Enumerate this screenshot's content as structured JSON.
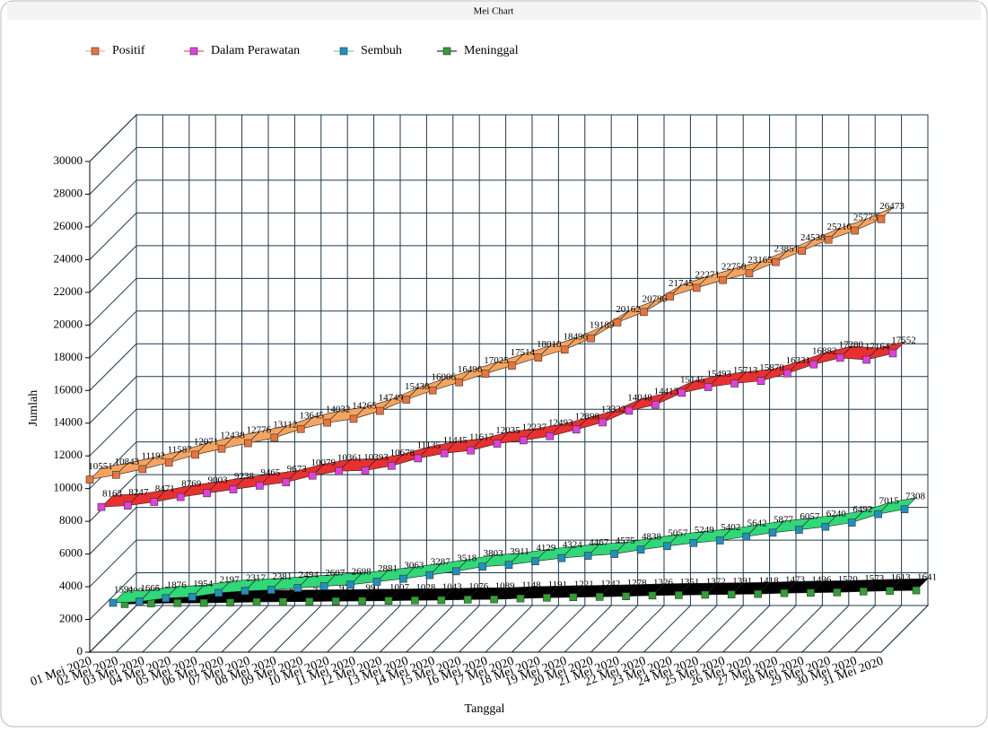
{
  "chart_data": {
    "type": "ribbon3d",
    "title": "Mei Chart",
    "x_label": "Tanggal",
    "y_label": "Jumlah",
    "categories": [
      "01 Mei 2020",
      "02 Mei 2020",
      "03 Mei 2020",
      "04 Mei 2020",
      "05 Mei 2020",
      "06 Mei 2020",
      "07 Mei 2020",
      "08 Mei 2020",
      "09 Mei 2020",
      "10 Mei 2020",
      "11 Mei 2020",
      "12 Mei 2020",
      "13 Mei 2020",
      "14 Mei 2020",
      "15 Mei 2020",
      "16 Mei 2020",
      "17 Mei 2020",
      "18 Mei 2020",
      "19 Mei 2020",
      "20 Mei 2020",
      "21 Mei 2020",
      "22 Mei 2020",
      "23 Mei 2020",
      "24 Mei 2020",
      "25 Mei 2020",
      "26 Mei 2020",
      "27 Mei 2020",
      "28 Mei 2020",
      "29 Mei 2020",
      "30 Mei 2020",
      "31 Mei 2020"
    ],
    "series": [
      {
        "name": "Positif",
        "color": "#e8743b",
        "ribbon_color": "#f4a460",
        "values": [
          10551,
          10843,
          11192,
          11587,
          12071,
          12438,
          12776,
          13112,
          13645,
          14032,
          14265,
          14749,
          15438,
          16006,
          16496,
          17025,
          17514,
          18010,
          18496,
          19189,
          20162,
          20796,
          21745,
          22271,
          22750,
          23165,
          23851,
          24538,
          25216,
          25773,
          26473
        ]
      },
      {
        "name": "Dalam Perawatan",
        "color": "#e040e0",
        "ribbon_color": "#e83030",
        "values": [
          8163,
          8247,
          8471,
          8769,
          9003,
          9238,
          9465,
          9673,
          10079,
          10361,
          10393,
          10678,
          11135,
          11445,
          11617,
          12035,
          12237,
          12493,
          12898,
          13332,
          14048,
          14413,
          15145,
          15493,
          15713,
          15870,
          16331,
          16882,
          17280,
          17164,
          17552
        ]
      },
      {
        "name": "Sembuh",
        "color": "#2090c0",
        "ribbon_color": "#30d878",
        "values": [
          1591,
          1665,
          1876,
          1954,
          2197,
          2317,
          2381,
          2494,
          2607,
          2698,
          2881,
          3063,
          3287,
          3518,
          3803,
          3911,
          4129,
          4324,
          4467,
          4575,
          4838,
          5057,
          5249,
          5402,
          5642,
          5877,
          6057,
          6240,
          6492,
          7015,
          7308
        ]
      },
      {
        "name": "Meninggal",
        "color": "#30a030",
        "ribbon_color": "#000000",
        "values": [
          800,
          845,
          864,
          872,
          895,
          930,
          943,
          959,
          973,
          991,
          1007,
          1028,
          1043,
          1076,
          1089,
          1148,
          1191,
          1221,
          1242,
          1278,
          1326,
          1351,
          1372,
          1391,
          1418,
          1473,
          1496,
          1520,
          1573,
          1613,
          1641
        ]
      }
    ],
    "ylim": [
      0,
      30000
    ],
    "yticks": [
      0,
      2000,
      4000,
      6000,
      8000,
      10000,
      12000,
      14000,
      16000,
      18000,
      20000,
      22000,
      24000,
      26000,
      28000,
      30000
    ],
    "grid": true,
    "legend": "top-left"
  }
}
